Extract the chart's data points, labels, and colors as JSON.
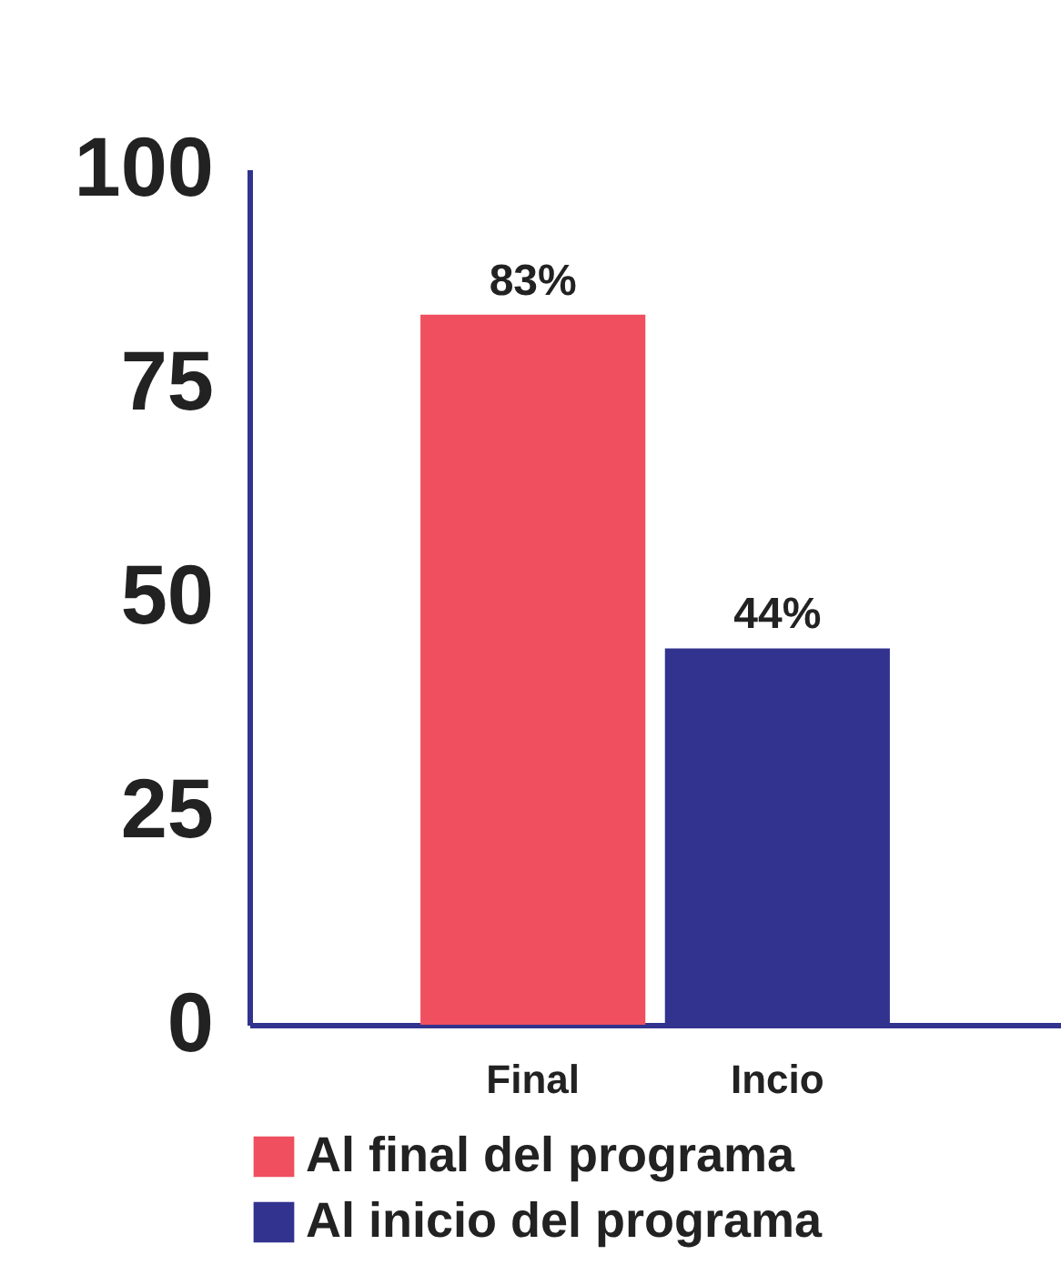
{
  "chart_data": {
    "type": "bar",
    "categories": [
      "Final",
      "Incio"
    ],
    "series": [
      {
        "name": "Al final del programa",
        "color": "#ef4f5e",
        "values": [
          83,
          null
        ],
        "value_labels": [
          "83%",
          null
        ]
      },
      {
        "name": "Al inicio del programa",
        "color": "#32338f",
        "values": [
          null,
          44
        ],
        "value_labels": [
          null,
          "44%"
        ]
      }
    ],
    "ylim": [
      0,
      100
    ],
    "yticks": [
      0,
      25,
      50,
      75,
      100
    ],
    "grid": false,
    "legend": "bottom"
  }
}
